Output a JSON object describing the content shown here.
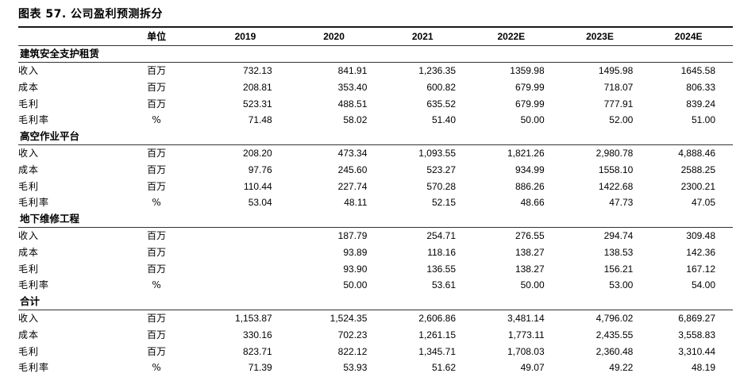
{
  "title": "图表 57. 公司盈利预测拆分",
  "header": {
    "unit": "单位",
    "years": [
      "2019",
      "2020",
      "2021",
      "2022E",
      "2023E",
      "2024E"
    ]
  },
  "sections": [
    {
      "name": "建筑安全支护租赁",
      "rows": [
        {
          "label": "收入",
          "unit": "百万",
          "values": [
            "732.13",
            "841.91",
            "1,236.35",
            "1359.98",
            "1495.98",
            "1645.58"
          ]
        },
        {
          "label": "成本",
          "unit": "百万",
          "values": [
            "208.81",
            "353.40",
            "600.82",
            "679.99",
            "718.07",
            "806.33"
          ]
        },
        {
          "label": "毛利",
          "unit": "百万",
          "values": [
            "523.31",
            "488.51",
            "635.52",
            "679.99",
            "777.91",
            "839.24"
          ]
        },
        {
          "label": "毛利率",
          "unit": "%",
          "values": [
            "71.48",
            "58.02",
            "51.40",
            "50.00",
            "52.00",
            "51.00"
          ]
        }
      ]
    },
    {
      "name": "高空作业平台",
      "rows": [
        {
          "label": "收入",
          "unit": "百万",
          "values": [
            "208.20",
            "473.34",
            "1,093.55",
            "1,821.26",
            "2,980.78",
            "4,888.46"
          ]
        },
        {
          "label": "成本",
          "unit": "百万",
          "values": [
            "97.76",
            "245.60",
            "523.27",
            "934.99",
            "1558.10",
            "2588.25"
          ]
        },
        {
          "label": "毛利",
          "unit": "百万",
          "values": [
            "110.44",
            "227.74",
            "570.28",
            "886.26",
            "1422.68",
            "2300.21"
          ]
        },
        {
          "label": "毛利率",
          "unit": "%",
          "values": [
            "53.04",
            "48.11",
            "52.15",
            "48.66",
            "47.73",
            "47.05"
          ]
        }
      ]
    },
    {
      "name": "地下维修工程",
      "rows": [
        {
          "label": "收入",
          "unit": "百万",
          "values": [
            "",
            "187.79",
            "254.71",
            "276.55",
            "294.74",
            "309.48"
          ]
        },
        {
          "label": "成本",
          "unit": "百万",
          "values": [
            "",
            "93.89",
            "118.16",
            "138.27",
            "138.53",
            "142.36"
          ]
        },
        {
          "label": "毛利",
          "unit": "百万",
          "values": [
            "",
            "93.90",
            "136.55",
            "138.27",
            "156.21",
            "167.12"
          ]
        },
        {
          "label": "毛利率",
          "unit": "%",
          "values": [
            "",
            "50.00",
            "53.61",
            "50.00",
            "53.00",
            "54.00"
          ]
        }
      ]
    },
    {
      "name": "合计",
      "rows": [
        {
          "label": "收入",
          "unit": "百万",
          "values": [
            "1,153.87",
            "1,524.35",
            "2,606.86",
            "3,481.14",
            "4,796.02",
            "6,869.27"
          ]
        },
        {
          "label": "成本",
          "unit": "百万",
          "values": [
            "330.16",
            "702.23",
            "1,261.15",
            "1,773.11",
            "2,435.55",
            "3,558.83"
          ]
        },
        {
          "label": "毛利",
          "unit": "百万",
          "values": [
            "823.71",
            "822.12",
            "1,345.71",
            "1,708.03",
            "2,360.48",
            "3,310.44"
          ]
        },
        {
          "label": "毛利率",
          "unit": "%",
          "values": [
            "71.39",
            "53.93",
            "51.62",
            "49.07",
            "49.22",
            "48.19"
          ]
        }
      ]
    }
  ]
}
